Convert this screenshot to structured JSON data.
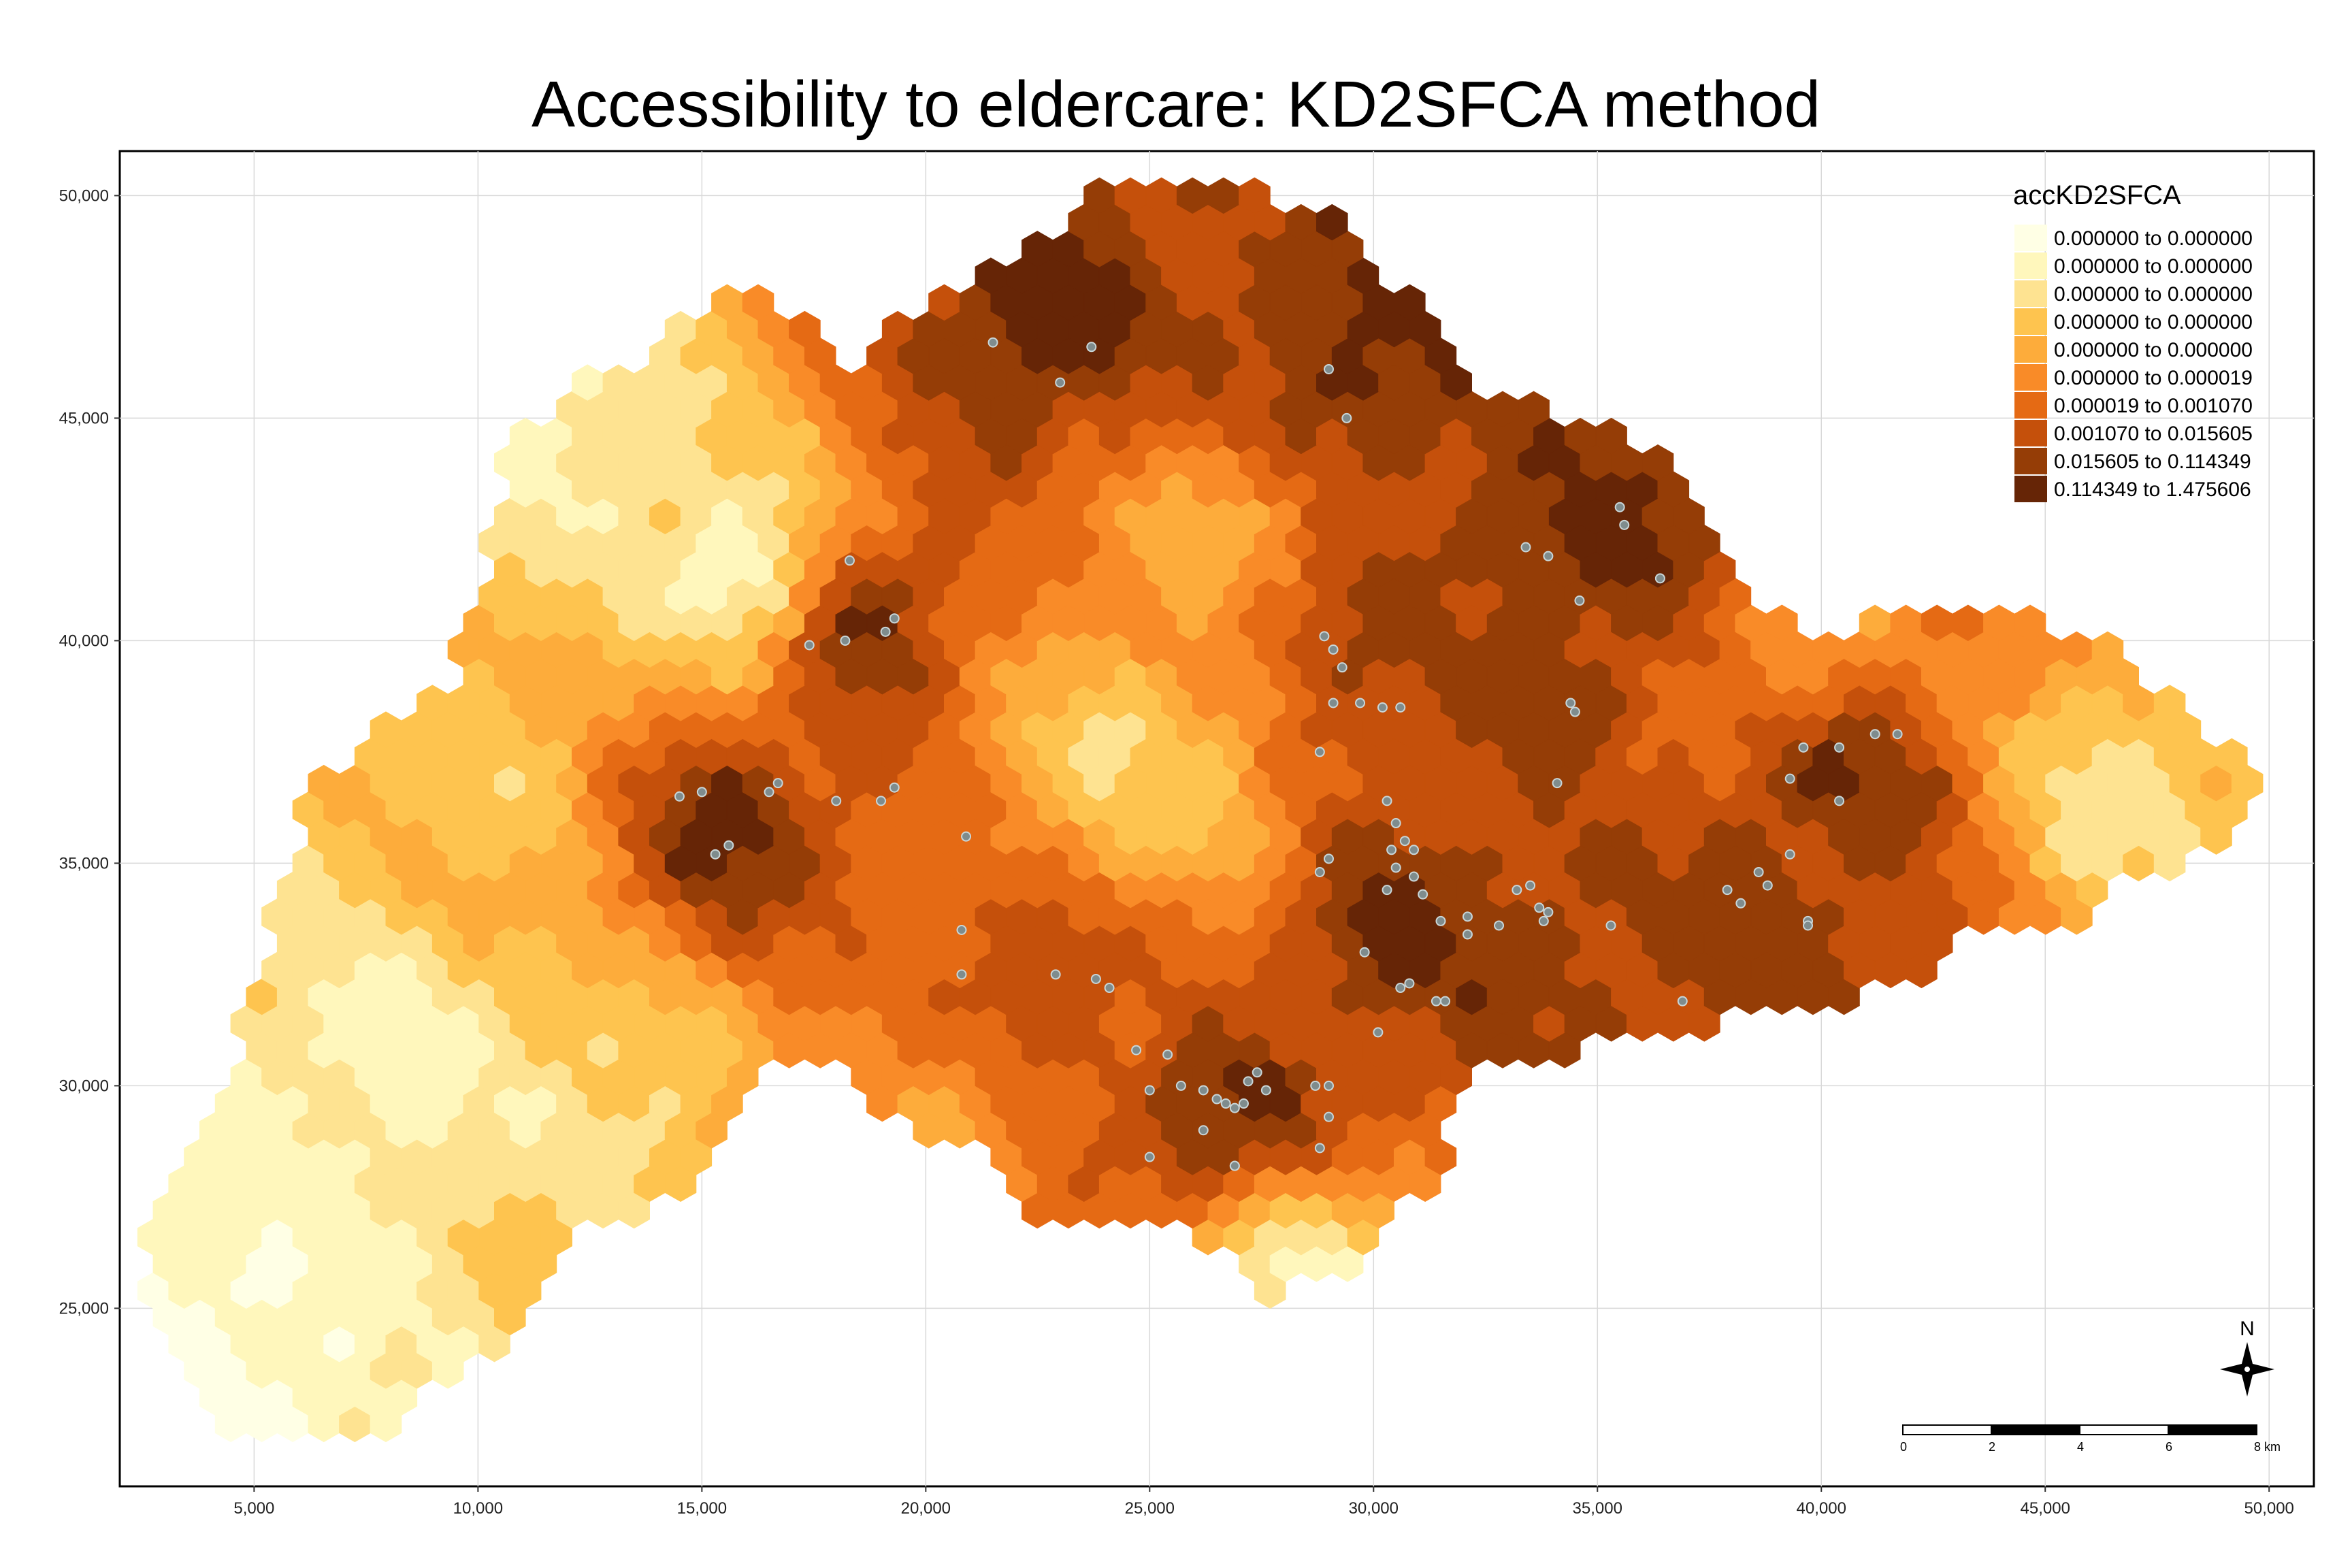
{
  "title": "Accessibility to eldercare: KD2SFCA method",
  "x_axis": {
    "range": [
      2000,
      51000
    ],
    "ticks": [
      5000,
      10000,
      15000,
      20000,
      25000,
      30000,
      35000,
      40000,
      45000,
      50000
    ],
    "tick_labels": [
      "5,000",
      "10,000",
      "15,000",
      "20,000",
      "25,000",
      "30,000",
      "35,000",
      "40,000",
      "45,000",
      "50,000"
    ]
  },
  "y_axis": {
    "range": [
      21000,
      51000
    ],
    "ticks": [
      25000,
      30000,
      35000,
      40000,
      45000,
      50000
    ],
    "tick_labels": [
      "25,000",
      "30,000",
      "35,000",
      "40,000",
      "45,000",
      "50,000"
    ]
  },
  "grid": true,
  "legend": {
    "title": "accKD2SFCA",
    "position": "top-right",
    "classes": [
      {
        "label": "0.000000 to 0.000000",
        "color": "#ffffe5"
      },
      {
        "label": "0.000000 to 0.000000",
        "color": "#fff7bc"
      },
      {
        "label": "0.000000 to 0.000000",
        "color": "#fee391"
      },
      {
        "label": "0.000000 to 0.000000",
        "color": "#fec44f"
      },
      {
        "label": "0.000000 to 0.000000",
        "color": "#fdac3b"
      },
      {
        "label": "0.000000 to 0.000019",
        "color": "#f98b28"
      },
      {
        "label": "0.000019 to 0.001070",
        "color": "#e56a14"
      },
      {
        "label": "0.001070 to 0.015605",
        "color": "#c5500b"
      },
      {
        "label": "0.015605 to 0.114349",
        "color": "#953d06"
      },
      {
        "label": "0.114349 to 1.475606",
        "color": "#662506"
      }
    ]
  },
  "scale_bar": {
    "labels": [
      "0",
      "2",
      "4",
      "6",
      "8 km"
    ]
  },
  "north_arrow": {
    "label": "N",
    "icon": "north-arrow-icon"
  },
  "eldercare_point_color": "#7f8c8d",
  "chart_data": {
    "type": "heatmap",
    "title": "Accessibility to eldercare: KD2SFCA method",
    "geometry": "hexagonal grid",
    "xlim": [
      2000,
      51000
    ],
    "ylim": [
      21000,
      51000
    ],
    "zones": [
      {
        "x": 25500,
        "y": 32500,
        "class": 6
      },
      {
        "x": 36000,
        "y": 37000,
        "class": 6
      },
      {
        "x": 10500,
        "y": 37000,
        "class": 3
      },
      {
        "x": 8000,
        "y": 30000,
        "class": 1
      },
      {
        "x": 46500,
        "y": 36500,
        "class": 2
      },
      {
        "x": 26500,
        "y": 42500,
        "class": 4
      },
      {
        "x": 39500,
        "y": 39500,
        "class": 4
      },
      {
        "x": 15500,
        "y": 35800,
        "class": 9
      },
      {
        "x": 18500,
        "y": 40500,
        "class": 9
      },
      {
        "x": 22500,
        "y": 46800,
        "class": 9
      },
      {
        "x": 29500,
        "y": 46000,
        "class": 9
      },
      {
        "x": 26500,
        "y": 29500,
        "class": 9
      },
      {
        "x": 30500,
        "y": 33500,
        "class": 9
      },
      {
        "x": 35000,
        "y": 41800,
        "class": 9
      },
      {
        "x": 40000,
        "y": 37000,
        "class": 9
      },
      {
        "x": 39000,
        "y": 34000,
        "class": 8
      },
      {
        "x": 34500,
        "y": 34000,
        "class": 8
      },
      {
        "x": 22500,
        "y": 32000,
        "class": 8
      },
      {
        "x": 29500,
        "y": 39500,
        "class": 8
      },
      {
        "x": 34500,
        "y": 38500,
        "class": 8
      },
      {
        "x": 13000,
        "y": 30000,
        "class": 2
      },
      {
        "x": 4000,
        "y": 24000,
        "class": 0
      },
      {
        "x": 28500,
        "y": 25500,
        "class": 1
      },
      {
        "x": 11500,
        "y": 45000,
        "class": 1
      },
      {
        "x": 16000,
        "y": 41500,
        "class": 0
      },
      {
        "x": 26000,
        "y": 36500,
        "class": 3
      },
      {
        "x": 20500,
        "y": 29200,
        "class": 4
      },
      {
        "x": 24500,
        "y": 37500,
        "class": 2
      }
    ],
    "eldercare_points": [
      [
        21500,
        46700
      ],
      [
        23700,
        46600
      ],
      [
        23000,
        45800
      ],
      [
        29000,
        46100
      ],
      [
        29400,
        45000
      ],
      [
        18300,
        41800
      ],
      [
        17400,
        39900
      ],
      [
        18200,
        40000
      ],
      [
        19300,
        40500
      ],
      [
        19100,
        40200
      ],
      [
        14500,
        36500
      ],
      [
        15000,
        36600
      ],
      [
        15600,
        35400
      ],
      [
        15300,
        35200
      ],
      [
        16700,
        36800
      ],
      [
        16500,
        36600
      ],
      [
        18000,
        36400
      ],
      [
        19000,
        36400
      ],
      [
        19300,
        36700
      ],
      [
        20900,
        35600
      ],
      [
        20800,
        33500
      ],
      [
        20800,
        32500
      ],
      [
        22900,
        32500
      ],
      [
        23800,
        32400
      ],
      [
        24100,
        32200
      ],
      [
        24700,
        30800
      ],
      [
        25400,
        30700
      ],
      [
        25000,
        29900
      ],
      [
        25700,
        30000
      ],
      [
        26200,
        29900
      ],
      [
        26500,
        29700
      ],
      [
        26700,
        29600
      ],
      [
        26900,
        29500
      ],
      [
        27200,
        30100
      ],
      [
        27400,
        30300
      ],
      [
        27600,
        29900
      ],
      [
        27100,
        29600
      ],
      [
        26200,
        29000
      ],
      [
        26900,
        28200
      ],
      [
        28700,
        30000
      ],
      [
        29000,
        30000
      ],
      [
        29000,
        29300
      ],
      [
        28800,
        28600
      ],
      [
        25000,
        28400
      ],
      [
        29100,
        39800
      ],
      [
        28900,
        40100
      ],
      [
        29300,
        39400
      ],
      [
        29100,
        38600
      ],
      [
        29700,
        38600
      ],
      [
        30200,
        38500
      ],
      [
        30600,
        38500
      ],
      [
        28800,
        37500
      ],
      [
        30300,
        36400
      ],
      [
        30500,
        35900
      ],
      [
        30700,
        35500
      ],
      [
        30400,
        35300
      ],
      [
        30900,
        35300
      ],
      [
        29000,
        35100
      ],
      [
        28800,
        34800
      ],
      [
        30500,
        34900
      ],
      [
        30900,
        34700
      ],
      [
        31100,
        34300
      ],
      [
        32100,
        33800
      ],
      [
        31500,
        33700
      ],
      [
        32800,
        33600
      ],
      [
        32100,
        33400
      ],
      [
        30300,
        34400
      ],
      [
        29800,
        33000
      ],
      [
        30600,
        32200
      ],
      [
        30800,
        32300
      ],
      [
        31400,
        31900
      ],
      [
        31600,
        31900
      ],
      [
        30100,
        31200
      ],
      [
        33200,
        34400
      ],
      [
        33500,
        34500
      ],
      [
        33700,
        34000
      ],
      [
        33900,
        33900
      ],
      [
        33800,
        33700
      ],
      [
        35300,
        33600
      ],
      [
        36900,
        31900
      ],
      [
        37900,
        34400
      ],
      [
        38200,
        34100
      ],
      [
        38600,
        34800
      ],
      [
        38800,
        34500
      ],
      [
        39300,
        35200
      ],
      [
        39700,
        33700
      ],
      [
        39700,
        33600
      ],
      [
        40400,
        36400
      ],
      [
        40400,
        37600
      ],
      [
        39300,
        36900
      ],
      [
        39600,
        37600
      ],
      [
        41200,
        37900
      ],
      [
        41700,
        37900
      ],
      [
        34400,
        38600
      ],
      [
        34500,
        38400
      ],
      [
        34100,
        36800
      ],
      [
        34600,
        40900
      ],
      [
        33900,
        41900
      ],
      [
        33400,
        42100
      ],
      [
        35500,
        43000
      ],
      [
        35600,
        42600
      ],
      [
        36400,
        41400
      ],
      [
        26900,
        28200
      ]
    ]
  }
}
